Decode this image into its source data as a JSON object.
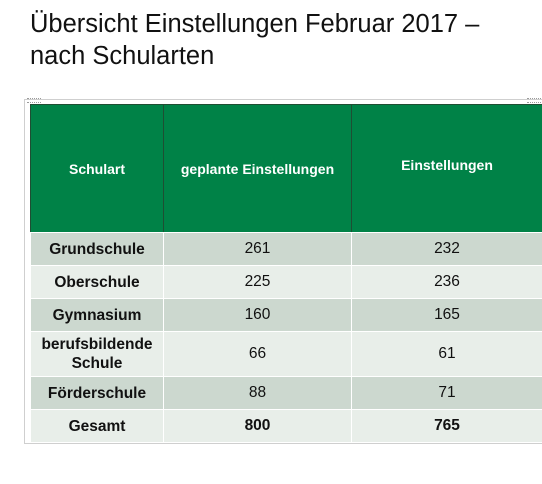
{
  "slide": {
    "title_line1": "Übersicht Einstellungen Februar 2017 –",
    "title_line2": "nach Schularten"
  },
  "table": {
    "headers": [
      "Schulart",
      "geplante Einstellungen",
      "Einstellungen"
    ],
    "rows": [
      {
        "label": "Grundschule",
        "geplant": "261",
        "einstellungen": "232"
      },
      {
        "label": "Oberschule",
        "geplant": "225",
        "einstellungen": "236"
      },
      {
        "label": "Gymnasium",
        "geplant": "160",
        "einstellungen": "165"
      },
      {
        "label": "berufsbildende Schule",
        "geplant": "66",
        "einstellungen": "61"
      },
      {
        "label": "Förderschule",
        "geplant": "88",
        "einstellungen": "71"
      },
      {
        "label": "Gesamt",
        "geplant": "800",
        "einstellungen": "765"
      }
    ],
    "colors": {
      "header_bg": "#008247",
      "header_text": "#ffffff",
      "row_dark": "#ccd8cf",
      "row_light": "#e8eee9"
    }
  }
}
